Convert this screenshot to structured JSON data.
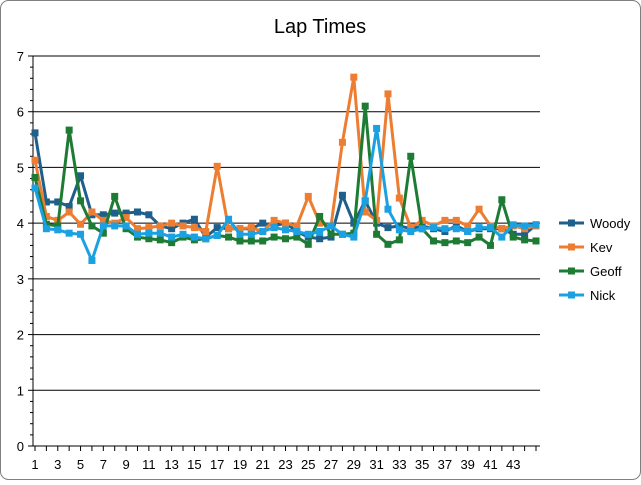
{
  "chart_data": {
    "type": "line",
    "title": "Lap Times",
    "xlabel": "",
    "ylabel": "",
    "ylim": [
      0,
      7
    ],
    "yticks": [
      0,
      1,
      2,
      3,
      4,
      5,
      6,
      7
    ],
    "xlim": [
      1,
      45
    ],
    "xtick_labels": [
      "1",
      "3",
      "5",
      "7",
      "9",
      "11",
      "13",
      "15",
      "17",
      "19",
      "21",
      "23",
      "25",
      "27",
      "29",
      "31",
      "33",
      "35",
      "37",
      "39",
      "41",
      "43"
    ],
    "grid": "horizontal",
    "legend": "right",
    "x": [
      1,
      2,
      3,
      4,
      5,
      6,
      7,
      8,
      9,
      10,
      11,
      12,
      13,
      14,
      15,
      16,
      17,
      18,
      19,
      20,
      21,
      22,
      23,
      24,
      25,
      26,
      27,
      28,
      29,
      30,
      31,
      32,
      33,
      34,
      35,
      36,
      37,
      38,
      39,
      40,
      41,
      42,
      43,
      44,
      45
    ],
    "series": [
      {
        "name": "Woody",
        "color": "#1f5f8b",
        "values": [
          5.62,
          4.38,
          4.38,
          4.3,
          4.85,
          4.15,
          4.15,
          4.18,
          4.18,
          4.2,
          4.15,
          3.95,
          3.9,
          4.0,
          4.07,
          3.75,
          3.92,
          3.9,
          3.9,
          3.9,
          4.0,
          3.95,
          4.0,
          3.85,
          3.75,
          3.72,
          3.75,
          4.5,
          4.0,
          4.4,
          4.0,
          3.92,
          3.95,
          3.9,
          3.95,
          3.9,
          3.85,
          3.95,
          3.85,
          3.9,
          3.9,
          3.9,
          3.8,
          3.8,
          3.97
        ]
      },
      {
        "name": "Kev",
        "color": "#ed7d31",
        "values": [
          5.13,
          4.12,
          4.05,
          4.2,
          3.98,
          4.2,
          4.05,
          4.0,
          4.1,
          3.9,
          3.92,
          3.95,
          4.0,
          3.95,
          3.92,
          3.85,
          5.02,
          3.9,
          3.9,
          3.92,
          3.85,
          4.05,
          4.0,
          3.95,
          4.48,
          4.0,
          3.95,
          5.45,
          6.62,
          4.2,
          4.05,
          6.32,
          4.45,
          3.92,
          4.05,
          3.95,
          4.05,
          4.05,
          3.95,
          4.25,
          3.95,
          3.9,
          3.95,
          3.9,
          3.95
        ]
      },
      {
        "name": "Geoff",
        "color": "#1e7b34",
        "values": [
          4.82,
          3.98,
          3.95,
          5.67,
          4.4,
          3.95,
          3.82,
          4.48,
          3.9,
          3.75,
          3.72,
          3.7,
          3.65,
          3.75,
          3.7,
          3.72,
          3.78,
          3.75,
          3.68,
          3.68,
          3.68,
          3.75,
          3.72,
          3.75,
          3.62,
          4.12,
          3.8,
          3.8,
          3.82,
          6.1,
          3.8,
          3.62,
          3.7,
          5.2,
          3.9,
          3.68,
          3.65,
          3.68,
          3.65,
          3.75,
          3.6,
          4.42,
          3.75,
          3.7,
          3.68
        ]
      },
      {
        "name": "Nick",
        "color": "#1ba1e2",
        "values": [
          4.63,
          3.9,
          3.88,
          3.82,
          3.8,
          3.33,
          3.95,
          3.95,
          3.95,
          3.8,
          3.82,
          3.82,
          3.75,
          3.8,
          3.75,
          3.72,
          3.78,
          4.07,
          3.8,
          3.8,
          3.85,
          3.92,
          3.88,
          3.85,
          3.8,
          3.85,
          3.95,
          3.8,
          3.75,
          4.4,
          5.7,
          4.25,
          3.88,
          3.85,
          3.9,
          3.92,
          3.9,
          3.9,
          3.85,
          3.92,
          3.92,
          3.75,
          3.97,
          3.95,
          3.97
        ]
      }
    ]
  }
}
